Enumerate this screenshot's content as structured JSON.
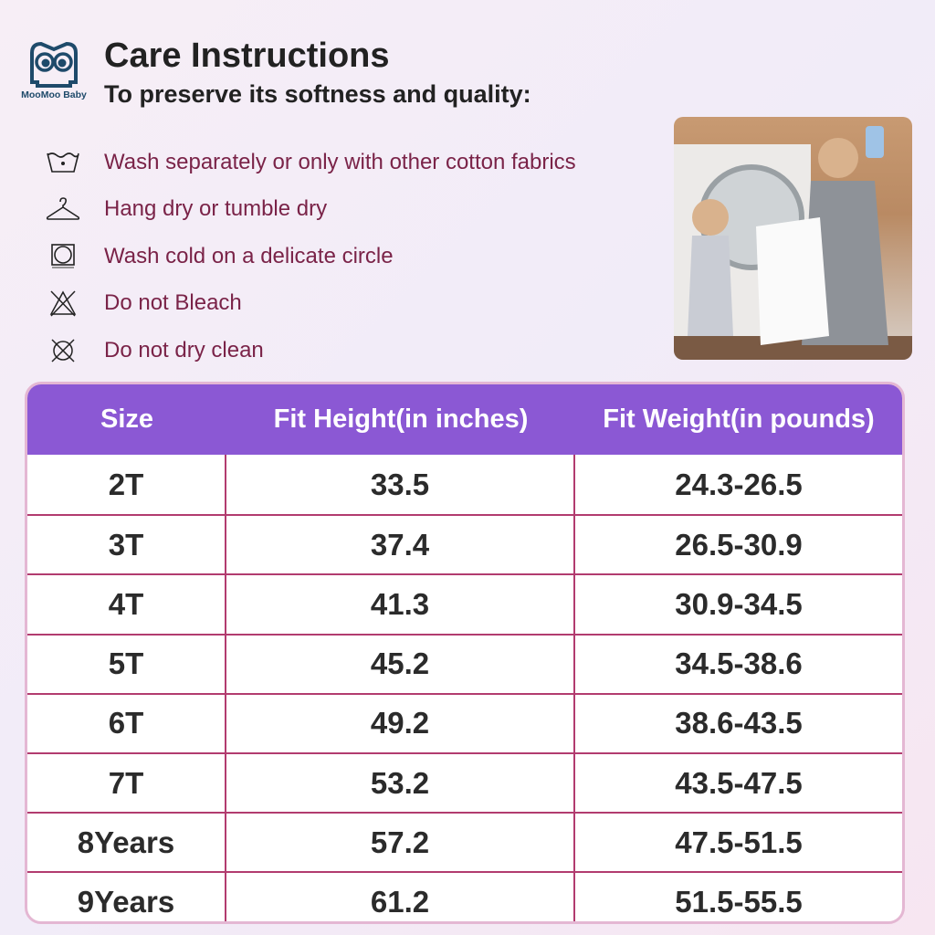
{
  "brand": {
    "logo_text": "MooMoo Baby"
  },
  "header": {
    "title": "Care Instructions",
    "subtitle": "To preserve its softness and quality:"
  },
  "care_items": [
    {
      "icon": "wash-tub-icon",
      "label": "Wash separately or only with other cotton fabrics"
    },
    {
      "icon": "hanger-icon",
      "label": "Hang dry or tumble dry"
    },
    {
      "icon": "tumble-dry-icon",
      "label": "Wash cold on a delicate circle"
    },
    {
      "icon": "no-bleach-icon",
      "label": "Do not Bleach"
    },
    {
      "icon": "no-dry-clean-icon",
      "label": "Do not dry clean"
    }
  ],
  "table": {
    "header_color": "#8b58d4",
    "line_color": "#b23c6f",
    "headers": [
      "Size",
      "Fit Height(in inches)",
      "Fit Weight(in pounds)"
    ],
    "rows": [
      [
        "2T",
        "33.5",
        "24.3-26.5"
      ],
      [
        "3T",
        "37.4",
        "26.5-30.9"
      ],
      [
        "4T",
        "41.3",
        "30.9-34.5"
      ],
      [
        "5T",
        "45.2",
        "34.5-38.6"
      ],
      [
        "6T",
        "49.2",
        "38.6-43.5"
      ],
      [
        "7T",
        "53.2",
        "43.5-47.5"
      ],
      [
        "8Years",
        "57.2",
        "47.5-51.5"
      ],
      [
        "9Years",
        "61.2",
        "51.5-55.5"
      ]
    ]
  }
}
